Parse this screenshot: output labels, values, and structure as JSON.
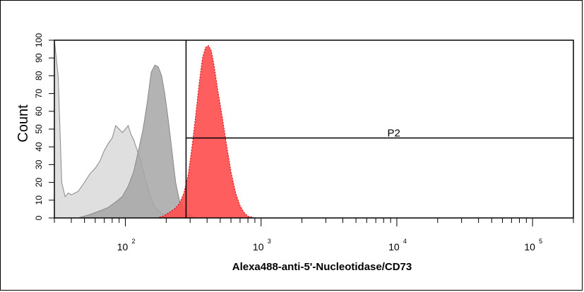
{
  "chart_data": {
    "type": "area",
    "xlabel": "Alexa488-anti-5'-Nucleotidase/CD73",
    "ylabel": "Count",
    "x_scale": "log",
    "xlim": [
      30,
      200000
    ],
    "ylim": [
      0,
      100
    ],
    "x_ticks": [
      {
        "base": "10",
        "exp": "2",
        "value": 100
      },
      {
        "base": "10",
        "exp": "3",
        "value": 1000
      },
      {
        "base": "10",
        "exp": "4",
        "value": 10000
      },
      {
        "base": "10",
        "exp": "5",
        "value": 100000
      }
    ],
    "y_tick_labels": [
      "0",
      "10",
      "20",
      "30",
      "40",
      "50",
      "60",
      "70",
      "80",
      "90",
      "100"
    ],
    "gate": {
      "name": "P2",
      "x_start": 280,
      "x_end": 200000,
      "y_level": 45
    },
    "series": [
      {
        "color": "#d9d9d9",
        "x": [
          30,
          32,
          34,
          36,
          38,
          40,
          45,
          50,
          55,
          60,
          65,
          70,
          75,
          80,
          85,
          90,
          95,
          100,
          105,
          110,
          115,
          120,
          130,
          140,
          150,
          160,
          170,
          180,
          190,
          200,
          210,
          220
        ],
        "y": [
          100,
          80,
          20,
          12,
          14,
          13,
          15,
          20,
          25,
          28,
          32,
          38,
          42,
          45,
          52,
          50,
          48,
          50,
          52,
          47,
          44,
          40,
          32,
          22,
          14,
          8,
          5,
          3,
          2,
          1,
          0.5,
          0
        ]
      },
      {
        "color": "#a6a6a6",
        "x": [
          45,
          55,
          65,
          75,
          85,
          95,
          105,
          115,
          125,
          135,
          145,
          155,
          165,
          175,
          185,
          195,
          205,
          215,
          225,
          235,
          250,
          270,
          290,
          310,
          330
        ],
        "y": [
          0,
          2,
          4,
          6,
          9,
          12,
          18,
          26,
          38,
          50,
          65,
          82,
          86,
          85,
          80,
          70,
          58,
          45,
          32,
          20,
          10,
          5,
          2,
          1,
          0
        ]
      },
      {
        "color": "#ff4d4d",
        "x": [
          170,
          190,
          210,
          230,
          250,
          270,
          290,
          310,
          330,
          350,
          370,
          390,
          410,
          430,
          450,
          480,
          520,
          560,
          600,
          650,
          700,
          750,
          800,
          850,
          900
        ],
        "y": [
          0,
          1,
          3,
          5,
          8,
          14,
          24,
          40,
          58,
          76,
          90,
          96,
          97,
          94,
          86,
          72,
          56,
          40,
          26,
          14,
          7,
          3,
          1,
          0.5,
          0
        ]
      }
    ]
  }
}
